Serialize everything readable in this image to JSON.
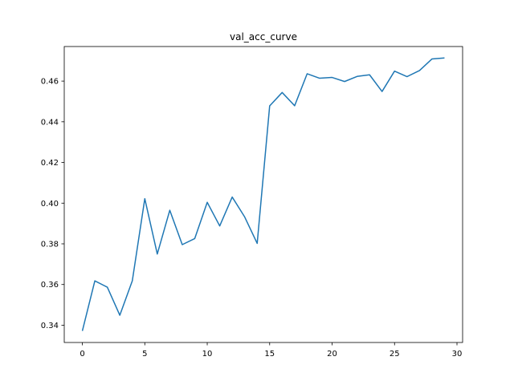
{
  "chart_data": {
    "type": "line",
    "title": "val_acc_curve",
    "xlabel": "",
    "ylabel": "",
    "xlim": [
      -1.45,
      30.45
    ],
    "ylim": [
      0.3315,
      0.477
    ],
    "xticks": [
      0,
      5,
      10,
      15,
      20,
      25,
      30
    ],
    "xtick_labels": [
      "0",
      "5",
      "10",
      "15",
      "20",
      "25",
      "30"
    ],
    "yticks": [
      0.34,
      0.36,
      0.38,
      0.4,
      0.42,
      0.44,
      0.46
    ],
    "ytick_labels": [
      "0.34",
      "0.36",
      "0.38",
      "0.40",
      "0.42",
      "0.44",
      "0.46"
    ],
    "grid": false,
    "line_color": "#1f77b4",
    "series": [
      {
        "x": [
          0,
          1,
          2,
          3,
          4,
          5,
          6,
          7,
          8,
          9,
          10,
          11,
          12,
          13,
          14,
          15,
          16,
          17,
          18,
          19,
          20,
          21,
          22,
          23,
          24,
          25,
          26,
          27,
          28,
          29
        ],
        "values": [
          0.3372,
          0.3618,
          0.3587,
          0.3449,
          0.3618,
          0.4022,
          0.375,
          0.3965,
          0.3796,
          0.3826,
          0.4004,
          0.3888,
          0.403,
          0.3932,
          0.3802,
          0.4478,
          0.4544,
          0.4479,
          0.4636,
          0.4614,
          0.4618,
          0.4598,
          0.4623,
          0.4631,
          0.4549,
          0.4649,
          0.4622,
          0.4652,
          0.4709,
          0.4714
        ]
      }
    ]
  }
}
